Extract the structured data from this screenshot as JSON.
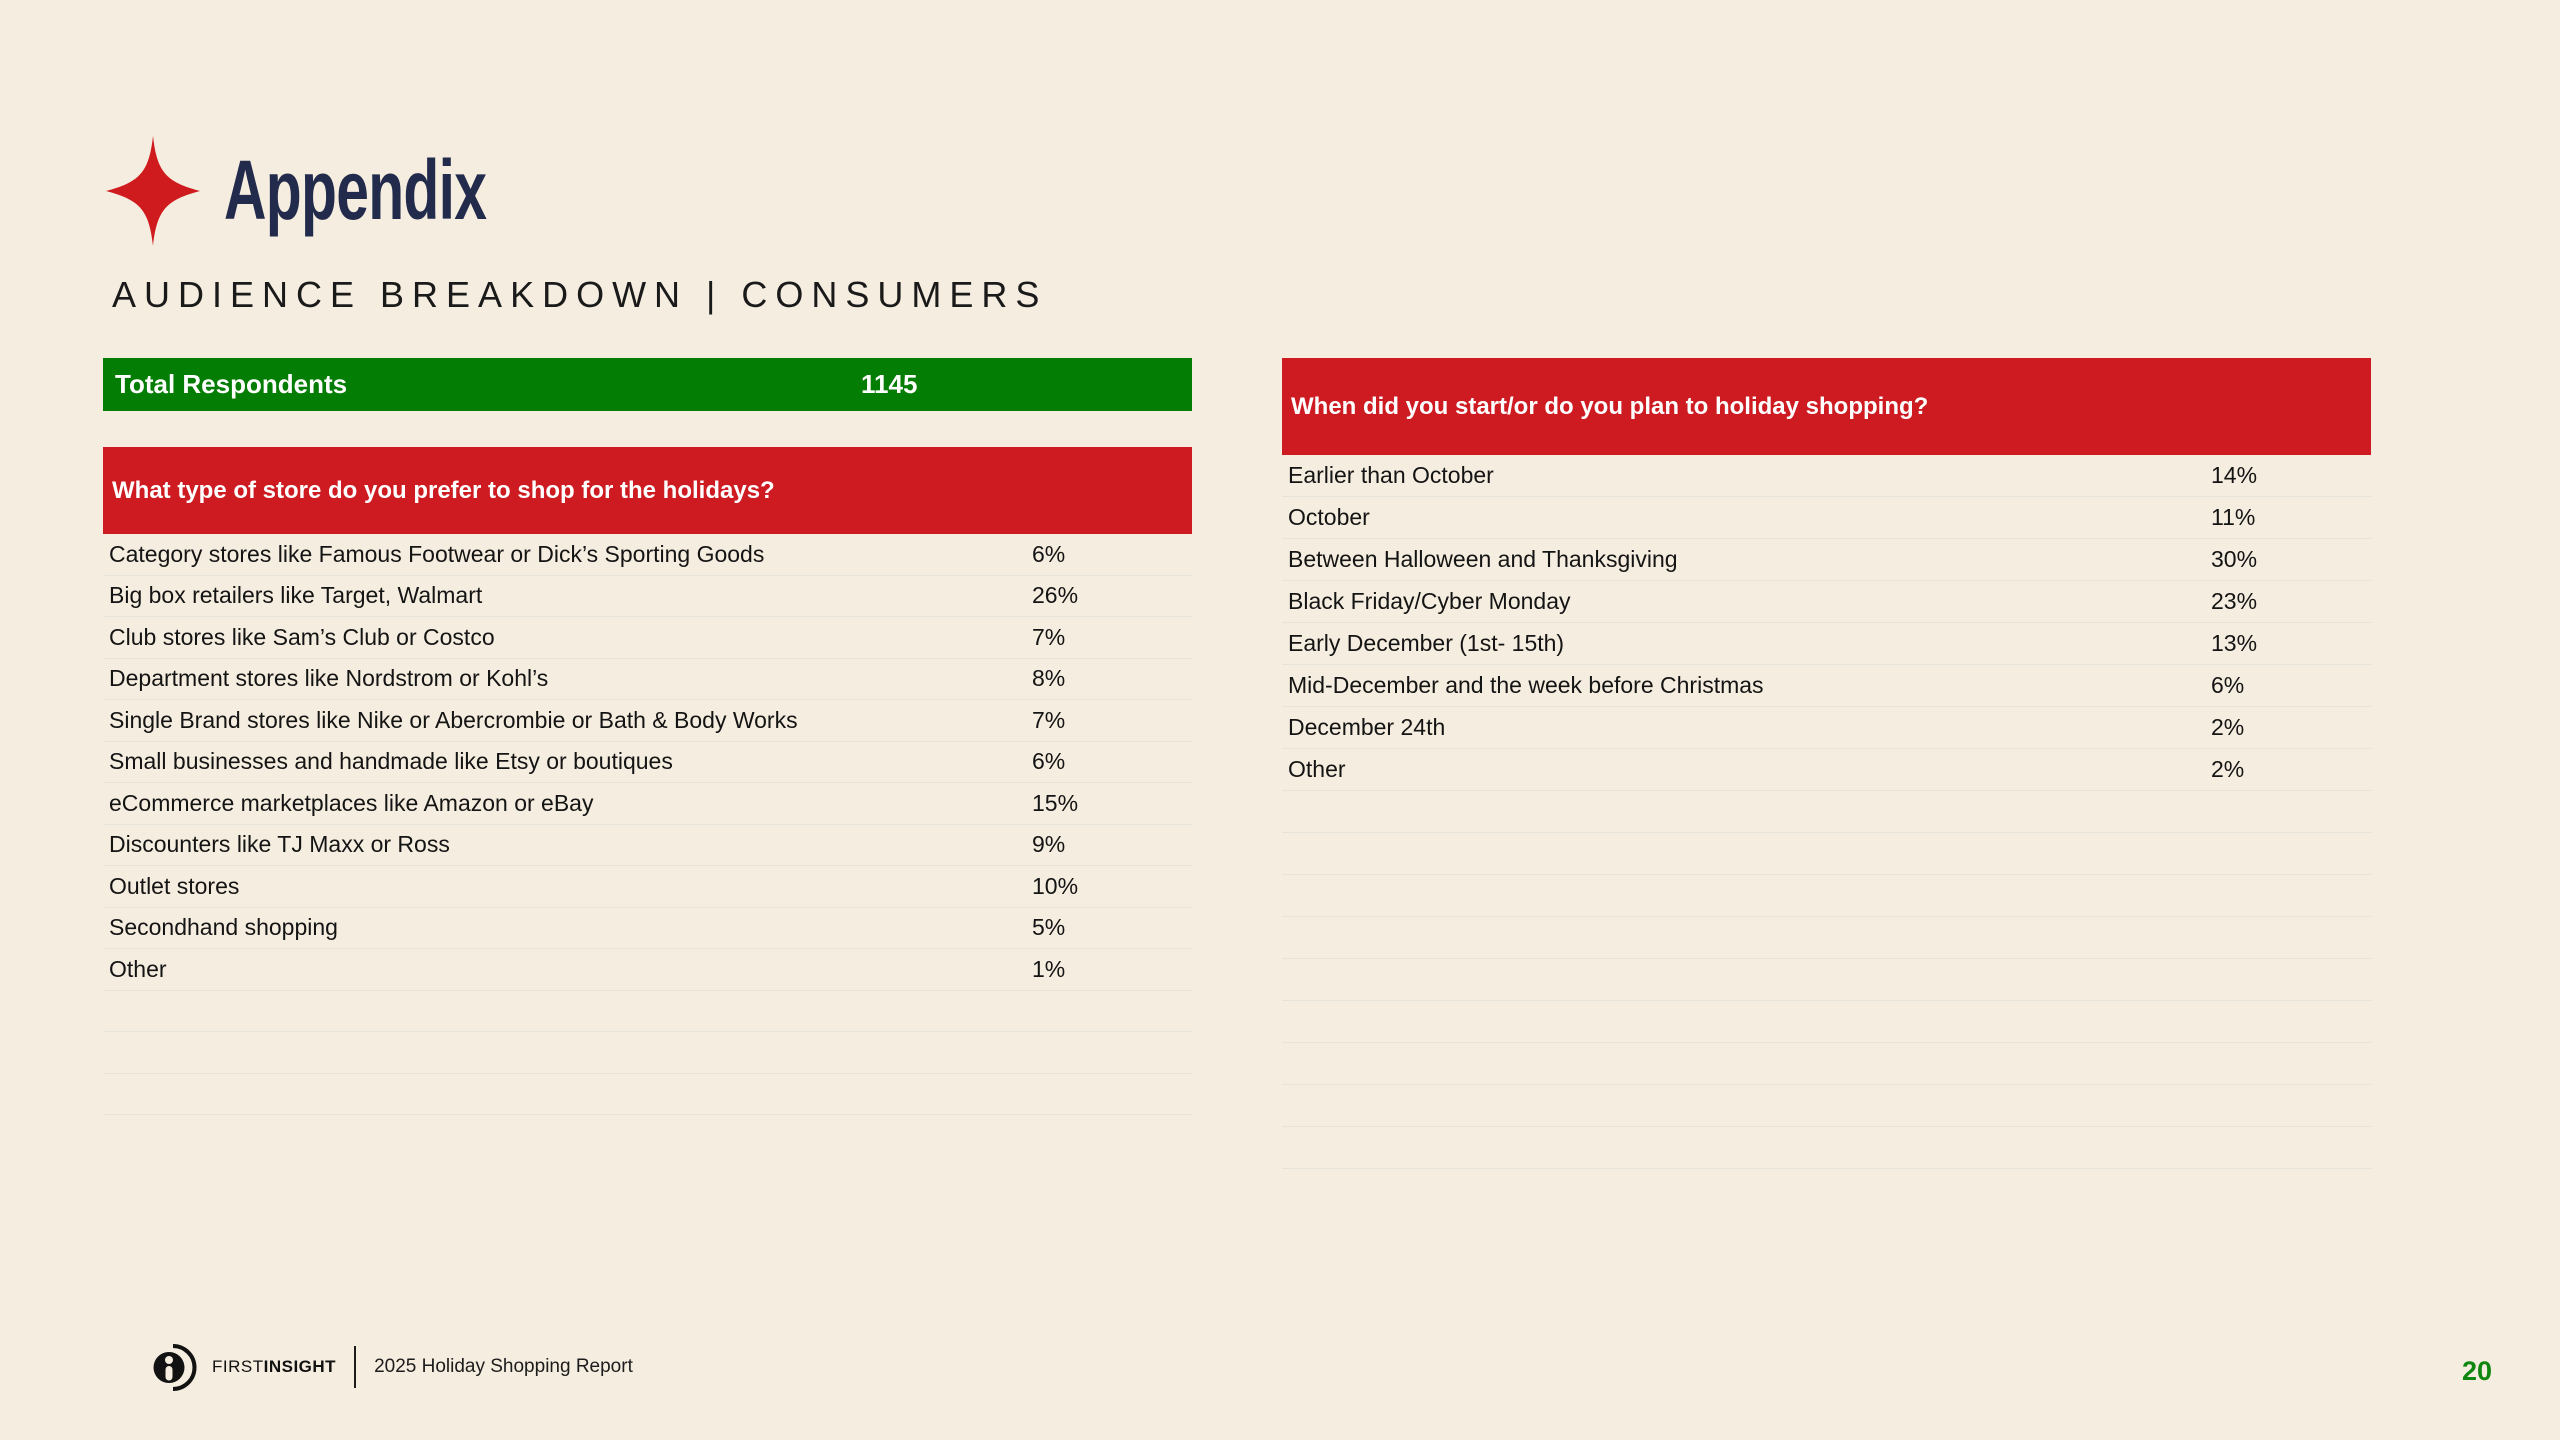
{
  "header": {
    "title": "Appendix",
    "subtitle": "AUDIENCE BREAKDOWN | CONSUMERS"
  },
  "totals": {
    "label": "Total Respondents",
    "value": "1145"
  },
  "left_table": {
    "question": "What type of store do you prefer to shop for the holidays?",
    "rows": [
      {
        "label": "Category stores like Famous Footwear or Dick’s Sporting Goods",
        "value": "6%"
      },
      {
        "label": "Big box retailers like Target, Walmart",
        "value": "26%"
      },
      {
        "label": "Club stores like Sam’s Club or Costco",
        "value": "7%"
      },
      {
        "label": "Department stores like Nordstrom or Kohl’s",
        "value": "8%"
      },
      {
        "label": "Single Brand stores like Nike or Abercrombie or Bath & Body Works",
        "value": "7%"
      },
      {
        "label": "Small businesses and handmade like Etsy or boutiques",
        "value": "6%"
      },
      {
        "label": "eCommerce marketplaces like Amazon or eBay",
        "value": "15%"
      },
      {
        "label": "Discounters like TJ Maxx or Ross",
        "value": "9%"
      },
      {
        "label": "Outlet stores",
        "value": "10%"
      },
      {
        "label": "Secondhand shopping",
        "value": "5%"
      },
      {
        "label": "Other",
        "value": "1%"
      }
    ],
    "empty_rows": 3
  },
  "right_table": {
    "question": "When did you start/or do you plan to holiday shopping?",
    "rows": [
      {
        "label": "Earlier than October",
        "value": "14%"
      },
      {
        "label": "October",
        "value": "11%"
      },
      {
        "label": "Between Halloween and Thanksgiving",
        "value": "30%"
      },
      {
        "label": "Black Friday/Cyber Monday",
        "value": "23%"
      },
      {
        "label": "Early December (1st- 15th)",
        "value": "13%"
      },
      {
        "label": "Mid-December and the week before Christmas",
        "value": "6%"
      },
      {
        "label": "December 24th",
        "value": "2%"
      },
      {
        "label": "Other",
        "value": "2%"
      }
    ],
    "empty_rows": 9
  },
  "footer": {
    "brand_first": "FIRST",
    "brand_second": "INSIGHT",
    "report_title": "2025 Holiday Shopping Report",
    "page_number": "20"
  },
  "icons": {
    "star": "sparkle-star-icon",
    "logo": "first-insight-logo-icon"
  },
  "colors": {
    "background": "#f5eddf",
    "green": "#047d04",
    "red": "#cd1b21",
    "title_navy": "#222b4c",
    "star_red": "#cf1a1e",
    "divider": "#e5e3da",
    "text": "#141414",
    "page_number_green": "#0f860f"
  }
}
